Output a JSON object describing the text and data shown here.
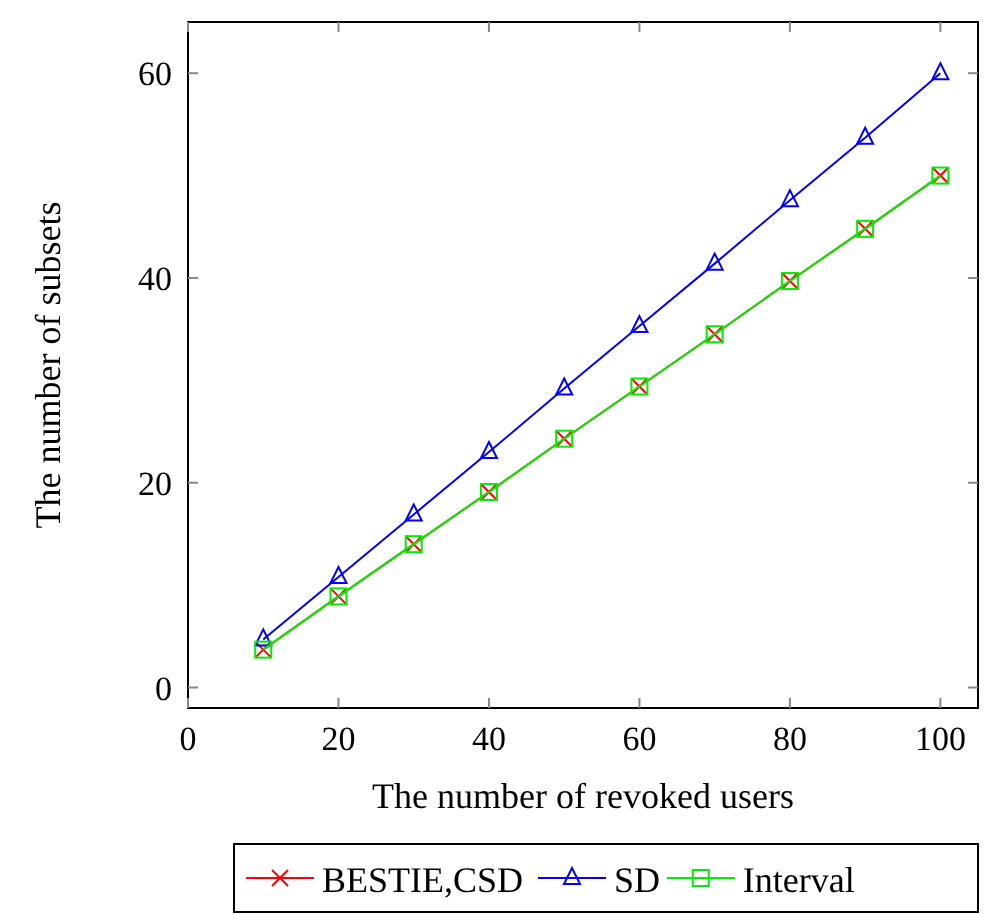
{
  "chart_data": {
    "type": "line",
    "xlabel": "The number of revoked users",
    "ylabel": "The number of subsets",
    "x": [
      10,
      20,
      30,
      40,
      50,
      60,
      70,
      80,
      90,
      100
    ],
    "series": [
      {
        "name": "BESTIE,CSD",
        "color": "#ff0000",
        "marker": "cross",
        "values": [
          3.7,
          8.9,
          14.0,
          19.1,
          24.3,
          29.4,
          34.5,
          39.7,
          44.8,
          50
        ]
      },
      {
        "name": "SD",
        "color": "#0000ff",
        "marker": "triangle",
        "values": [
          4.7,
          10.8,
          16.9,
          23.0,
          29.2,
          35.3,
          41.4,
          47.6,
          53.7,
          60
        ]
      },
      {
        "name": "Interval",
        "color": "#00ee00",
        "marker": "square",
        "values": [
          3.7,
          8.9,
          14.0,
          19.1,
          24.3,
          29.4,
          34.5,
          39.7,
          44.8,
          50
        ]
      }
    ],
    "xlim": [
      0,
      105
    ],
    "xticks": [
      0,
      20,
      40,
      60,
      80,
      100
    ],
    "ylim": [
      -2,
      65
    ],
    "yticks": [
      0,
      20,
      40,
      60
    ],
    "legend": "bottom",
    "grid": false
  }
}
